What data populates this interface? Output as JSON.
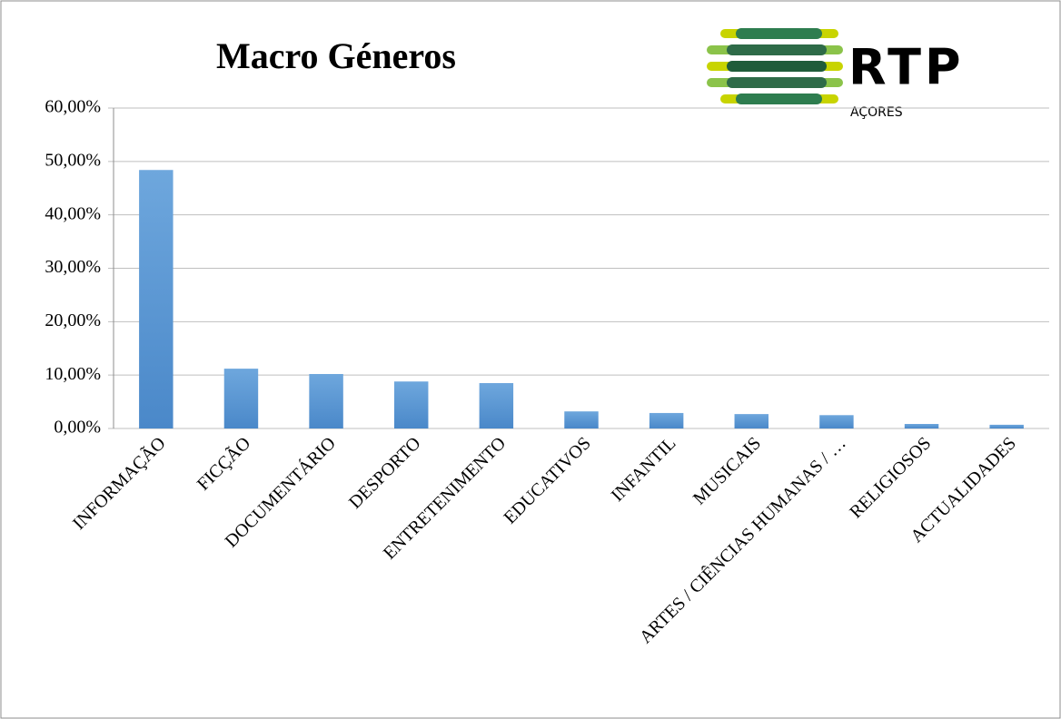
{
  "chart_data": {
    "type": "bar",
    "title": "Macro Géneros",
    "categories": [
      "INFORMAÇÃO",
      "FICÇÃO",
      "DOCUMENTÁRIO",
      "DESPORTO",
      "ENTRETENIMENTO",
      "EDUCATIVOS",
      "INFANTIL",
      "MUSICAIS",
      "ARTES / CIÊNCIAS HUMANAS / …",
      "RELIGIOSOS",
      "ACTUALIDADES"
    ],
    "values": [
      48.4,
      11.2,
      10.2,
      8.8,
      8.5,
      3.2,
      2.9,
      2.7,
      2.5,
      0.85,
      0.7
    ],
    "color": "#5b9bd5",
    "ylim": [
      0,
      60
    ],
    "yticks": [
      {
        "value": 0,
        "label": "0,00%"
      },
      {
        "value": 10,
        "label": "10,00%"
      },
      {
        "value": 20,
        "label": "20,00%"
      },
      {
        "value": 30,
        "label": "30,00%"
      },
      {
        "value": 40,
        "label": "40,00%"
      },
      {
        "value": 50,
        "label": "50,00%"
      },
      {
        "value": 60,
        "label": "60,00%"
      }
    ],
    "grid": true
  },
  "logo": {
    "name": "RTP",
    "sub": "AÇORES"
  }
}
